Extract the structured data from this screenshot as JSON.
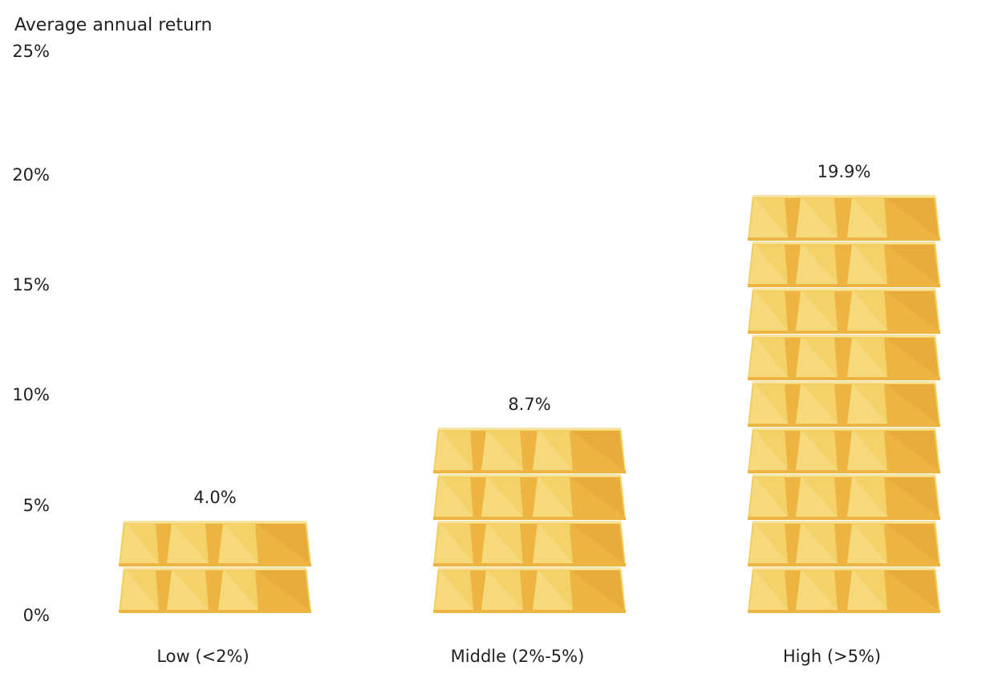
{
  "chart_data": {
    "type": "bar",
    "title": "",
    "xlabel": "",
    "ylabel": "Average annual return",
    "ylim": [
      0,
      25
    ],
    "y_ticks": [
      "0%",
      "5%",
      "10%",
      "15%",
      "20%",
      "25%"
    ],
    "y_tick_values": [
      0,
      5,
      10,
      15,
      20,
      25
    ],
    "categories": [
      "Low (<2%)",
      "Middle (2%-5%)",
      "High (>5%)"
    ],
    "values": [
      4.0,
      8.7,
      19.9
    ],
    "value_labels": [
      "4.0%",
      "8.7%",
      "19.9%"
    ],
    "bars_stacked": [
      2,
      4,
      9
    ],
    "grid": false,
    "legend": "none",
    "mark_style": "stacked-gold-bars-icon",
    "colors": {
      "gold_light": "#F5D97A",
      "gold_mid": "#F2CE5E",
      "gold_dark": "#EDB442",
      "gold_shadow": "#E4A93A",
      "gold_edge": "#F7E3A0",
      "text": "#222222"
    }
  }
}
